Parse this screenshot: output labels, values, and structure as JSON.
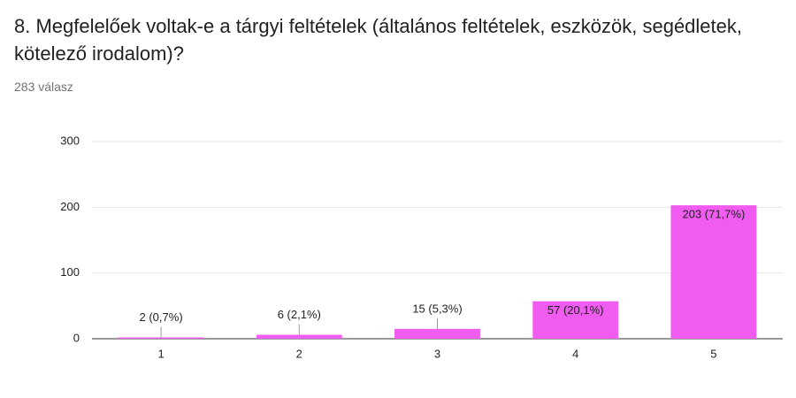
{
  "chart_data": {
    "type": "bar",
    "title": "8. Megfelelőek voltak-e a tárgyi feltételek (általános feltételek, eszközök, segédletek, kötelező irodalom)?",
    "subtitle": "283 válasz",
    "categories": [
      "1",
      "2",
      "3",
      "4",
      "5"
    ],
    "values": [
      2,
      6,
      15,
      57,
      203
    ],
    "value_labels": [
      "2 (0,7%)",
      "6 (2,1%)",
      "15 (5,3%)",
      "57 (20,1%)",
      "203 (71,7%)"
    ],
    "color": "#f05cf0",
    "ylim": [
      0,
      300
    ],
    "yticks": [
      0,
      100,
      200,
      300
    ],
    "grid": true
  }
}
